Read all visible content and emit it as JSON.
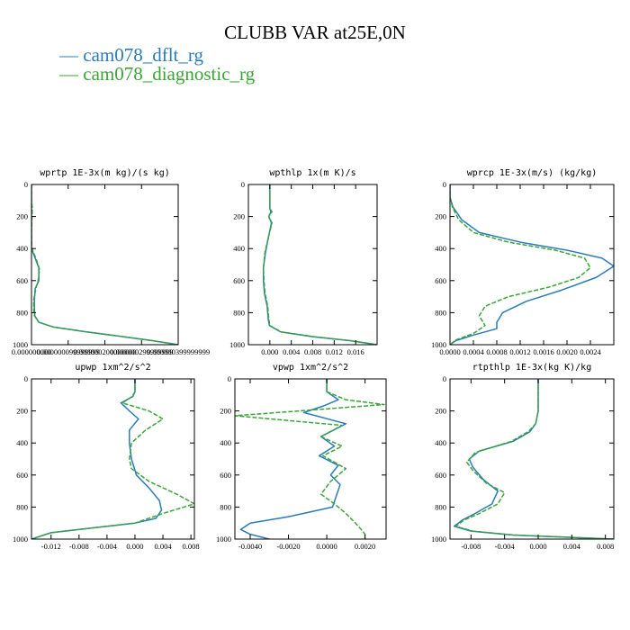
{
  "title": "CLUBB VAR at25E,0N",
  "legend": [
    {
      "text": "— cam078_dflt_rg",
      "color": "#2b7bb9"
    },
    {
      "text": "— cam078_diagnostic_rg",
      "color": "#3aa535"
    }
  ],
  "chart_data": [
    {
      "type": "line",
      "title": "wprtp  1E-3x(m kg)/(s kg)",
      "xlim": [
        0,
        4e-07
      ],
      "ylim": [
        1000,
        0
      ],
      "xticks": [
        0,
        1e-07,
        2e-07,
        3e-07,
        4e-07
      ],
      "xtick_labels": [
        "0.000000000",
        "0.000000099999999",
        "0.000000200000000",
        "0.000000299999999",
        "0.000000399999999"
      ],
      "yticks": [
        0,
        200,
        400,
        600,
        800,
        1000
      ],
      "ytick_labels": [
        "0",
        "200",
        "400",
        "600",
        "800",
        "1000"
      ],
      "series": [
        {
          "name": "cam078_dflt_rg",
          "color": "#2b7bb9",
          "dashed": false,
          "x": [
            0.0,
            0.0,
            0.0,
            0.0,
            0.0,
            1e-08,
            2e-08,
            2e-08,
            1e-08,
            8e-09,
            8e-09,
            9e-09,
            2e-08,
            6e-08,
            1.5e-07,
            2.5e-07,
            3.3e-07,
            4e-07
          ],
          "y": [
            0,
            100,
            200,
            300,
            400,
            460,
            520,
            600,
            650,
            720,
            780,
            820,
            860,
            890,
            920,
            950,
            975,
            1000
          ]
        },
        {
          "name": "cam078_diagnostic_rg",
          "color": "#3aa535",
          "dashed": true,
          "x": [
            0.0,
            0.0,
            2e-09,
            0.0,
            1e-09,
            1.2e-08,
            2.2e-08,
            1.8e-08,
            1.2e-08,
            6e-09,
            6e-09,
            8e-09,
            2e-08,
            6e-08,
            1.5e-07,
            2.5e-07,
            3.3e-07,
            4e-07
          ],
          "y": [
            0,
            100,
            150,
            300,
            400,
            460,
            530,
            600,
            650,
            720,
            780,
            820,
            860,
            890,
            920,
            950,
            975,
            1000
          ]
        }
      ]
    },
    {
      "type": "line",
      "title": "wpthlp  1x(m K)/s",
      "xlim": [
        -0.004,
        0.02
      ],
      "ylim": [
        1000,
        0
      ],
      "xticks": [
        0,
        0.004,
        0.008,
        0.012,
        0.016
      ],
      "xtick_labels": [
        "0.000",
        "0.004",
        "0.008",
        "0.012",
        "0.016"
      ],
      "yticks": [
        0,
        200,
        400,
        600,
        800,
        1000
      ],
      "ytick_labels": [
        "0",
        "200",
        "400",
        "600",
        "800",
        "1000"
      ],
      "series": [
        {
          "name": "cam078_dflt_rg",
          "color": "#2b7bb9",
          "dashed": false,
          "x": [
            0.0,
            0.0,
            0.0,
            0.0002,
            -0.0002,
            0.0003,
            -0.0002,
            -0.0008,
            -0.0012,
            -0.0012,
            -0.001,
            -0.0005,
            -0.0003,
            -0.0001,
            0.002,
            0.008,
            0.015,
            0.02
          ],
          "y": [
            0,
            100,
            150,
            170,
            200,
            240,
            320,
            420,
            520,
            600,
            680,
            760,
            840,
            880,
            920,
            950,
            975,
            1000
          ]
        },
        {
          "name": "cam078_diagnostic_rg",
          "color": "#3aa535",
          "dashed": true,
          "x": [
            0.0,
            0.0,
            0.0,
            0.0004,
            -0.0002,
            0.0004,
            -0.0002,
            -0.0009,
            -0.0012,
            -0.0011,
            -0.0009,
            -0.0004,
            -0.0002,
            0.0,
            0.0021,
            0.0082,
            0.015,
            0.02
          ],
          "y": [
            0,
            100,
            150,
            170,
            200,
            240,
            320,
            420,
            520,
            600,
            680,
            760,
            840,
            880,
            920,
            950,
            975,
            1000
          ]
        }
      ]
    },
    {
      "type": "line",
      "title": "wprcp  1E-3x(m/s) (kg/kg)",
      "xlim": [
        0,
        0.0028
      ],
      "ylim": [
        1000,
        0
      ],
      "xticks": [
        0,
        0.0004,
        0.0008,
        0.0012,
        0.0016,
        0.002,
        0.0024
      ],
      "xtick_labels": [
        "0.0000",
        "0.0004",
        "0.0008",
        "0.0012",
        "0.0016",
        "0.0020",
        "0.0024"
      ],
      "yticks": [
        0,
        200,
        400,
        600,
        800,
        1000
      ],
      "ytick_labels": [
        "0",
        "200",
        "400",
        "600",
        "800",
        "1000"
      ],
      "series": [
        {
          "name": "cam078_dflt_rg",
          "color": "#2b7bb9",
          "dashed": false,
          "x": [
            0.0,
            0.0,
            5e-05,
            0.0002,
            0.0005,
            0.0012,
            0.002,
            0.0026,
            0.0028,
            0.0025,
            0.0019,
            0.0013,
            0.0009,
            0.0008,
            0.0008,
            0.0004,
            0.0001,
            0.0
          ],
          "y": [
            0,
            80,
            140,
            220,
            300,
            360,
            410,
            460,
            510,
            580,
            660,
            730,
            800,
            860,
            900,
            940,
            975,
            1000
          ]
        },
        {
          "name": "cam078_diagnostic_rg",
          "color": "#3aa535",
          "dashed": true,
          "x": [
            0.0,
            0.0,
            4e-05,
            0.00015,
            0.0004,
            0.001,
            0.0018,
            0.0023,
            0.0024,
            0.0022,
            0.0017,
            0.001,
            0.0006,
            0.0005,
            0.0006,
            0.0004,
            0.0001,
            0.0
          ],
          "y": [
            0,
            80,
            140,
            220,
            300,
            360,
            410,
            460,
            520,
            580,
            640,
            700,
            760,
            820,
            880,
            930,
            970,
            1000
          ]
        }
      ]
    },
    {
      "type": "line",
      "title": "upwp  1xm^2/s^2",
      "xlim": [
        -0.0148,
        0.0085
      ],
      "ylim": [
        1000,
        0
      ],
      "xticks": [
        -0.012,
        -0.008,
        -0.004,
        0.0,
        0.004,
        0.008
      ],
      "xtick_labels": [
        "-0.012",
        "-0.008",
        "-0.004",
        "0.000",
        "0.004",
        "0.008"
      ],
      "yticks": [
        0,
        200,
        400,
        600,
        800,
        1000
      ],
      "ytick_labels": [
        "0",
        "200",
        "400",
        "600",
        "800",
        "1000"
      ],
      "series": [
        {
          "name": "cam078_dflt_rg",
          "color": "#2b7bb9",
          "dashed": false,
          "x": [
            0.0,
            0.0,
            -0.0003,
            -0.002,
            -0.0008,
            0.0005,
            -0.0008,
            -0.0008,
            -0.0005,
            0.0002,
            0.002,
            0.0035,
            0.0038,
            0.003,
            0.0,
            -0.006,
            -0.012,
            -0.0148
          ],
          "y": [
            0,
            80,
            110,
            150,
            200,
            250,
            320,
            400,
            500,
            600,
            680,
            760,
            820,
            870,
            900,
            930,
            960,
            1000
          ]
        },
        {
          "name": "cam078_diagnostic_rg",
          "color": "#3aa535",
          "dashed": true,
          "x": [
            0.0,
            0.0,
            -0.0004,
            -0.0018,
            0.002,
            0.004,
            0.0015,
            -0.0005,
            -0.0008,
            -0.0005,
            0.002,
            0.006,
            0.0085,
            0.004,
            0.0,
            -0.006,
            -0.012,
            -0.0148
          ],
          "y": [
            0,
            80,
            110,
            150,
            200,
            250,
            320,
            400,
            500,
            560,
            640,
            720,
            780,
            840,
            900,
            930,
            960,
            1000
          ]
        }
      ]
    },
    {
      "type": "line",
      "title": "vpwp  1xm^2/s^2",
      "xlim": [
        -0.0048,
        0.0031
      ],
      "ylim": [
        1000,
        0
      ],
      "xticks": [
        -0.004,
        -0.002,
        0.0,
        0.002
      ],
      "xtick_labels": [
        "-0.0040",
        "-0.0020",
        "0.0000",
        "0.0020"
      ],
      "yticks": [
        0,
        200,
        400,
        600,
        800,
        1000
      ],
      "ytick_labels": [
        "0",
        "200",
        "400",
        "600",
        "800",
        "1000"
      ],
      "series": [
        {
          "name": "cam078_dflt_rg",
          "color": "#2b7bb9",
          "dashed": false,
          "x": [
            0.0,
            0.0,
            0.0006,
            -0.0002,
            -0.0012,
            0.001,
            -0.0003,
            0.0004,
            -0.0004,
            0.0006,
            0.0002,
            0.0007,
            0.0003,
            -0.002,
            -0.004,
            -0.0045,
            -0.004,
            -0.003
          ],
          "y": [
            0,
            80,
            130,
            170,
            210,
            280,
            360,
            420,
            480,
            540,
            600,
            660,
            800,
            860,
            900,
            940,
            970,
            1000
          ]
        },
        {
          "name": "cam078_diagnostic_rg",
          "color": "#3aa535",
          "dashed": true,
          "x": [
            0.0,
            0.0,
            0.001,
            0.003,
            -0.0048,
            0.0008,
            -0.0003,
            0.0008,
            -0.0002,
            0.001,
            0.0002,
            -0.0003,
            0.0004,
            0.001,
            0.0015,
            0.0018,
            0.002,
            0.002
          ],
          "y": [
            0,
            80,
            130,
            160,
            230,
            290,
            360,
            420,
            480,
            560,
            640,
            720,
            780,
            840,
            900,
            940,
            970,
            1000
          ]
        }
      ]
    },
    {
      "type": "line",
      "title": "rtpthlp  1E-3x(kg K)/kg",
      "xlim": [
        -0.0105,
        0.009
      ],
      "ylim": [
        1000,
        0
      ],
      "xticks": [
        -0.008,
        -0.004,
        0.0,
        0.004,
        0.008
      ],
      "xtick_labels": [
        "-0.008",
        "-0.004",
        "0.000",
        "0.004",
        "0.008"
      ],
      "yticks": [
        0,
        200,
        400,
        600,
        800,
        1000
      ],
      "ytick_labels": [
        "0",
        "200",
        "400",
        "600",
        "800",
        "1000"
      ],
      "series": [
        {
          "name": "cam078_dflt_rg",
          "color": "#2b7bb9",
          "dashed": false,
          "x": [
            0.0,
            0.0,
            0.0,
            -0.0003,
            -0.001,
            -0.003,
            -0.007,
            -0.0082,
            -0.0078,
            -0.0065,
            -0.0048,
            -0.0055,
            -0.0075,
            -0.009,
            -0.01,
            -0.008,
            -0.003,
            0.009
          ],
          "y": [
            0,
            100,
            200,
            280,
            330,
            390,
            450,
            500,
            550,
            630,
            700,
            780,
            840,
            880,
            920,
            950,
            975,
            1000
          ]
        },
        {
          "name": "cam078_diagnostic_rg",
          "color": "#3aa535",
          "dashed": true,
          "x": [
            0.0,
            0.0,
            0.0,
            -0.0003,
            -0.0012,
            -0.0032,
            -0.0075,
            -0.0085,
            -0.0078,
            -0.0062,
            -0.004,
            -0.0048,
            -0.007,
            -0.0088,
            -0.0098,
            -0.0078,
            -0.0028,
            0.009
          ],
          "y": [
            0,
            100,
            200,
            280,
            330,
            390,
            460,
            520,
            570,
            650,
            710,
            780,
            840,
            880,
            920,
            950,
            975,
            1000
          ]
        }
      ]
    }
  ]
}
